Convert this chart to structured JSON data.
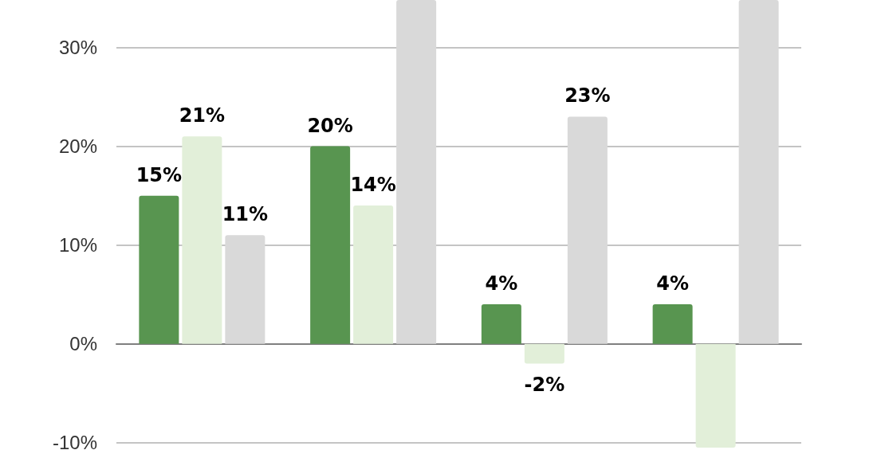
{
  "chart_data": {
    "type": "bar",
    "categories": [
      null,
      null,
      null,
      null
    ],
    "series": [
      {
        "color": "#589550",
        "values": [
          15,
          20,
          4,
          4
        ],
        "value_labels": [
          "15%",
          "20%",
          "4%",
          "4%"
        ]
      },
      {
        "color": "#e2efd9",
        "values": [
          21,
          14,
          -2,
          -10.5
        ],
        "value_labels": [
          "21%",
          "14%",
          "-2%",
          null
        ]
      },
      {
        "color": "#d9d9d9",
        "values": [
          11,
          34.8,
          23,
          34.8
        ],
        "value_labels": [
          "11%",
          null,
          "23%",
          null
        ]
      }
    ],
    "ylim": [
      -10.5,
      34.8
    ],
    "yticks": [
      {
        "value": -10,
        "label": "-10%"
      },
      {
        "value": 0,
        "label": "0%"
      },
      {
        "value": 10,
        "label": "10%"
      },
      {
        "value": 20,
        "label": "20%"
      },
      {
        "value": 30,
        "label": "30%"
      }
    ],
    "grid": "y"
  }
}
